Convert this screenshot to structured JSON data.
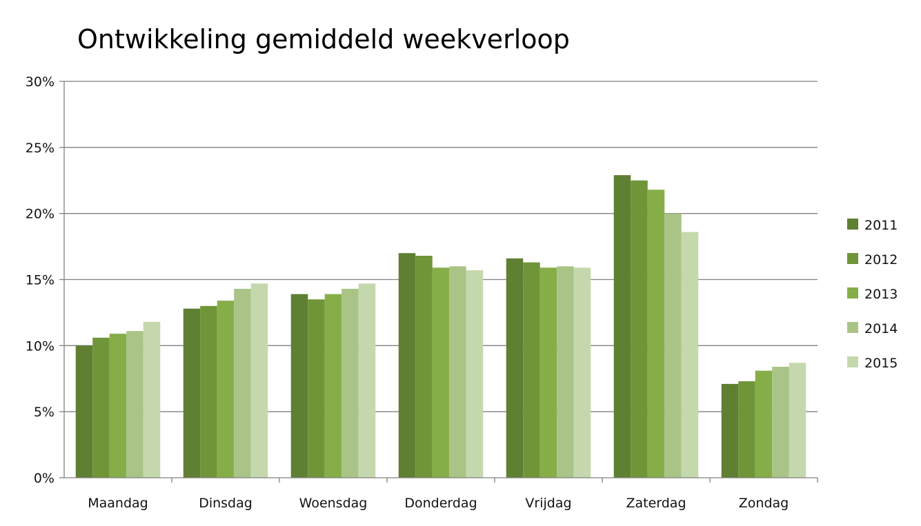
{
  "chart_data": {
    "type": "bar",
    "title": "Ontwikkeling gemiddeld weekverloop",
    "xlabel": "",
    "ylabel": "",
    "categories": [
      "Maandag",
      "Dinsdag",
      "Woensdag",
      "Donderdag",
      "Vrijdag",
      "Zaterdag",
      "Zondag"
    ],
    "ylim": [
      0,
      30
    ],
    "yticks": [
      0,
      5,
      10,
      15,
      20,
      25,
      30
    ],
    "ytick_labels": [
      "0%",
      "5%",
      "10%",
      "15%",
      "20%",
      "25%",
      "30%"
    ],
    "grid": true,
    "legend_position": "right",
    "series": [
      {
        "name": "2011",
        "color": "#5f7f33",
        "values": [
          10.0,
          12.8,
          13.9,
          17.0,
          16.6,
          22.9,
          7.1
        ]
      },
      {
        "name": "2012",
        "color": "#6f9538",
        "values": [
          10.6,
          13.0,
          13.5,
          16.8,
          16.3,
          22.5,
          7.3
        ]
      },
      {
        "name": "2013",
        "color": "#86ae48",
        "values": [
          10.9,
          13.4,
          13.9,
          15.9,
          15.9,
          21.8,
          8.1
        ]
      },
      {
        "name": "2014",
        "color": "#a9c486",
        "values": [
          11.1,
          14.3,
          14.3,
          16.0,
          16.0,
          20.0,
          8.4
        ]
      },
      {
        "name": "2015",
        "color": "#c5d8ad",
        "values": [
          11.8,
          14.7,
          14.7,
          15.7,
          15.9,
          18.6,
          8.7
        ]
      }
    ]
  }
}
